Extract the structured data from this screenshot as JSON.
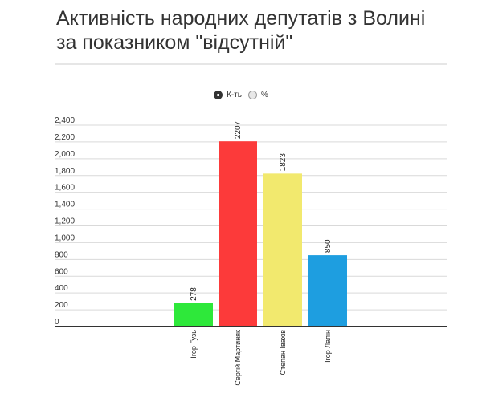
{
  "title": "Активність народних депутатів з Волині за показником \"відсутній\"",
  "toggle": {
    "options": [
      {
        "label": "К-ть",
        "selected": true
      },
      {
        "label": "%",
        "selected": false
      }
    ]
  },
  "chart_data": {
    "type": "bar",
    "title": "Активність народних депутатів з Волині за показником \"відсутній\"",
    "categories": [
      "Ігор Гузь",
      "Сергій Мартиняк",
      "Степан Івахів",
      "Ігор Лапін"
    ],
    "values": [
      278,
      2207,
      1823,
      850
    ],
    "colors": [
      "#2ee83a",
      "#fc3a3a",
      "#f2e96e",
      "#1e9ee0"
    ],
    "ylim": [
      0,
      2400
    ],
    "yticks": [
      0,
      200,
      400,
      600,
      800,
      1000,
      1200,
      1400,
      1600,
      1800,
      2000,
      2200,
      2400
    ],
    "ytick_labels": [
      "0",
      "200",
      "400",
      "600",
      "800",
      "1,000",
      "1,200",
      "1,400",
      "1,600",
      "1,800",
      "2,000",
      "2,200",
      "2,400"
    ],
    "grid": true,
    "data_labels": true,
    "xlabel": "",
    "ylabel": ""
  }
}
